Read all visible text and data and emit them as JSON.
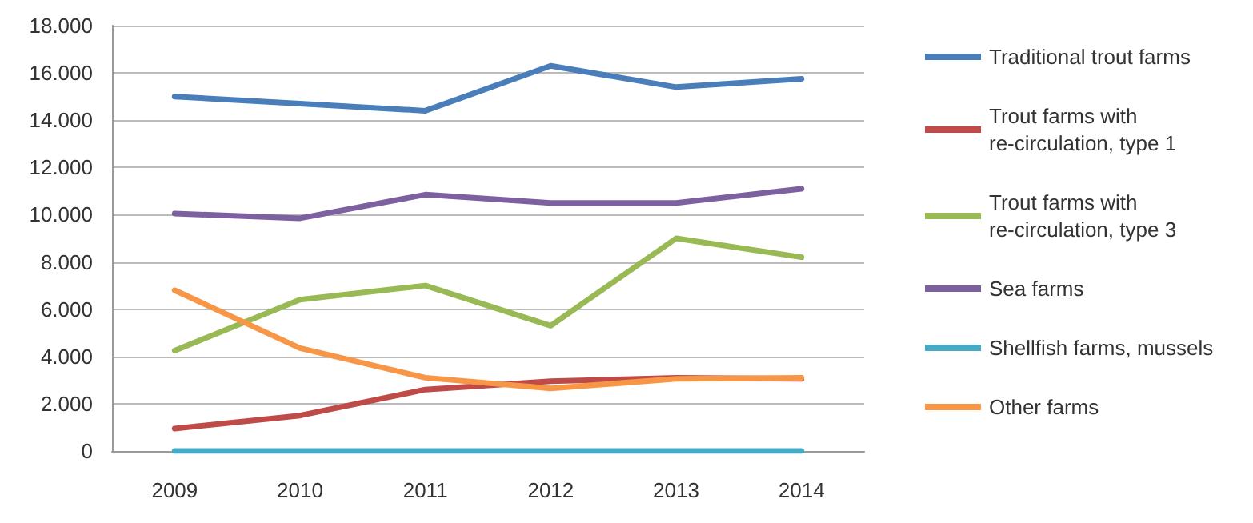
{
  "chart_data": {
    "type": "line",
    "categories": [
      "2009",
      "2010",
      "2011",
      "2012",
      "2013",
      "2014"
    ],
    "series": [
      {
        "name": "Traditional trout farms",
        "color": "#4a7ebb",
        "values": [
          15000,
          14700,
          14400,
          16300,
          15400,
          15750
        ]
      },
      {
        "name": "Trout farms with re-circulation, type 1",
        "color": "#be4b48",
        "values": [
          950,
          1500,
          2600,
          2950,
          3100,
          3050
        ]
      },
      {
        "name": "Trout farms with re-circulation, type 3",
        "color": "#98b954",
        "values": [
          4250,
          6400,
          7000,
          5300,
          9000,
          8200
        ]
      },
      {
        "name": "Sea farms",
        "color": "#7d60a0",
        "values": [
          10050,
          9850,
          10850,
          10500,
          10500,
          11100
        ]
      },
      {
        "name": "Shellfish farms, mussels",
        "color": "#46aac5",
        "values": [
          0,
          0,
          0,
          0,
          0,
          0
        ]
      },
      {
        "name": "Other farms",
        "color": "#f79646",
        "values": [
          6800,
          4350,
          3100,
          2650,
          3050,
          3100
        ]
      }
    ],
    "ylim": [
      0,
      18000
    ],
    "yticks": [
      {
        "value": 0,
        "label": "0"
      },
      {
        "value": 2000,
        "label": "2.000"
      },
      {
        "value": 4000,
        "label": "4.000"
      },
      {
        "value": 6000,
        "label": "6.000"
      },
      {
        "value": 8000,
        "label": "8.000"
      },
      {
        "value": 10000,
        "label": "10.000"
      },
      {
        "value": 12000,
        "label": "12.000"
      },
      {
        "value": 14000,
        "label": "14.000"
      },
      {
        "value": 16000,
        "label": "16.000"
      },
      {
        "value": 18000,
        "label": "18.000"
      }
    ],
    "grid": "y",
    "legend": "right",
    "marker": "none",
    "line_style": "solid"
  }
}
